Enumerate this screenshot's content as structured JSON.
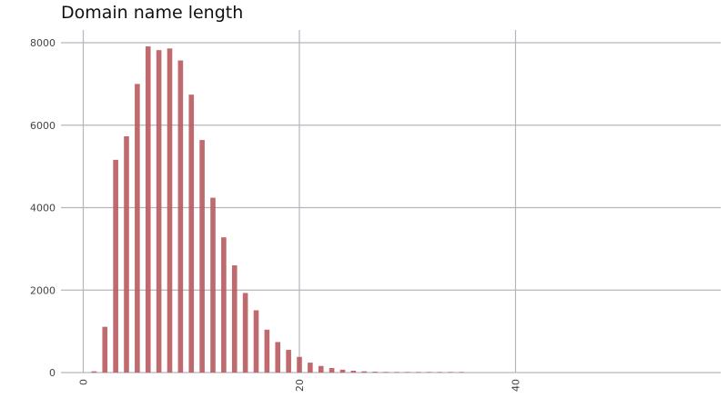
{
  "chart_data": {
    "type": "bar",
    "title": "Domain name length",
    "xlabel": "",
    "ylabel": "",
    "x_ticks": [
      0,
      20,
      40
    ],
    "y_ticks": [
      0,
      2000,
      4000,
      6000,
      8000
    ],
    "xlim": [
      0,
      59
    ],
    "ylim": [
      0,
      8300
    ],
    "grid": true,
    "legend": "none",
    "bar_color": "#b85a5e",
    "grid_color": "#b8b4bd",
    "x": [
      1,
      2,
      3,
      4,
      5,
      6,
      7,
      8,
      9,
      10,
      11,
      12,
      13,
      14,
      15,
      16,
      17,
      18,
      19,
      20,
      21,
      22,
      23,
      24,
      25,
      26,
      27,
      28,
      29,
      30,
      31,
      32,
      33,
      34,
      35
    ],
    "values": [
      30,
      1110,
      5160,
      5730,
      7000,
      7910,
      7820,
      7860,
      7570,
      6740,
      5640,
      4240,
      3280,
      2600,
      1930,
      1510,
      1040,
      740,
      550,
      380,
      240,
      160,
      110,
      70,
      45,
      30,
      20,
      15,
      10,
      7,
      5,
      4,
      3,
      2,
      1
    ]
  }
}
